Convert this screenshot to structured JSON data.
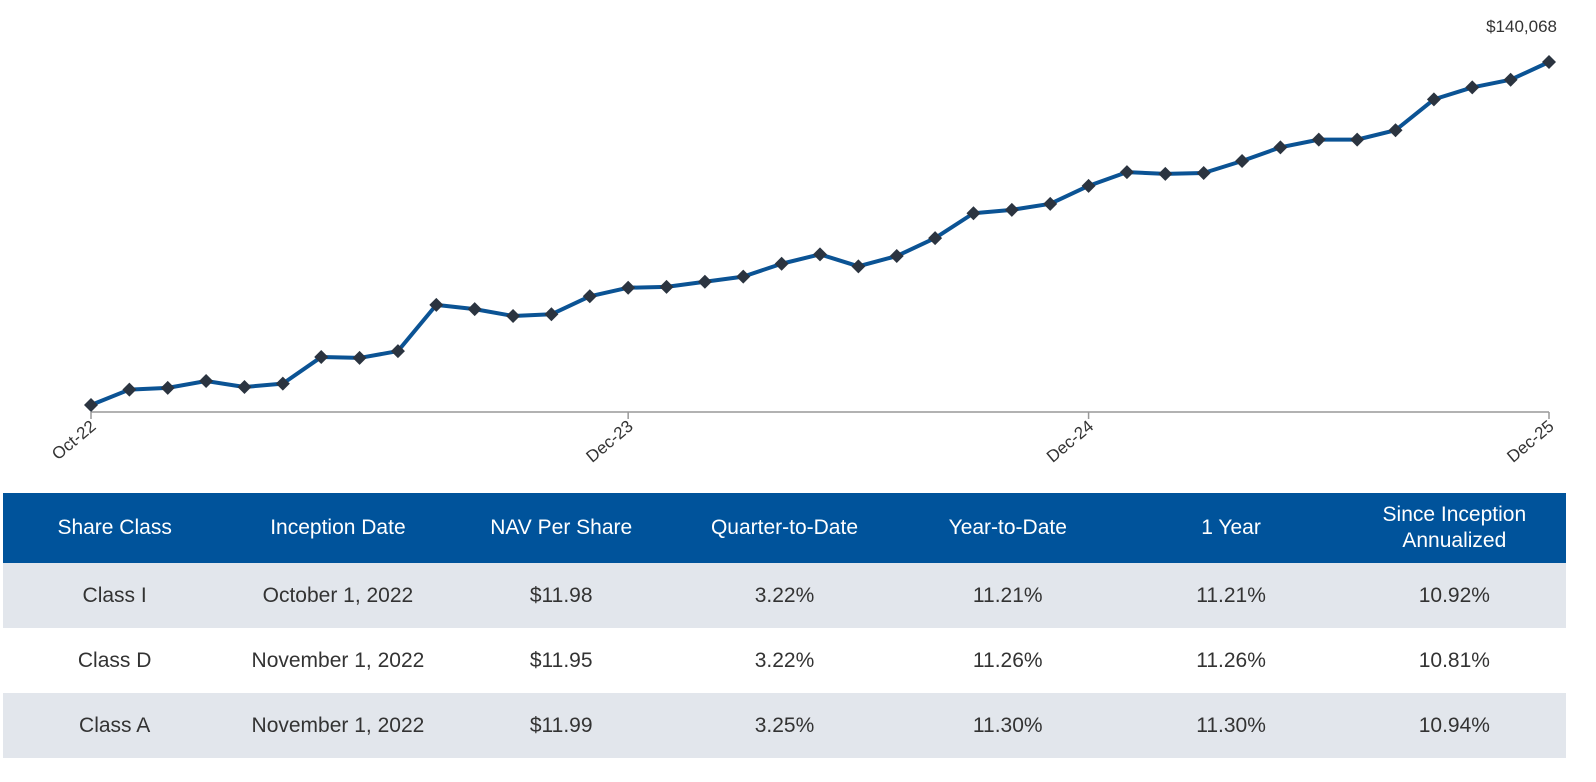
{
  "chart_data": {
    "type": "line",
    "categories": [
      "Oct-22",
      null,
      null,
      null,
      null,
      null,
      null,
      null,
      null,
      null,
      null,
      null,
      null,
      null,
      "Dec-23",
      null,
      null,
      null,
      null,
      null,
      null,
      null,
      null,
      null,
      null,
      null,
      "Dec-24",
      null,
      null,
      null,
      null,
      null,
      null,
      null,
      null,
      null,
      null,
      null,
      "Dec-25"
    ],
    "values": [
      100000,
      101800,
      102000,
      102800,
      102100,
      102500,
      105600,
      105500,
      106300,
      111700,
      111200,
      110400,
      110600,
      112700,
      113700,
      113800,
      114400,
      115000,
      116500,
      117600,
      116200,
      117400,
      119500,
      122400,
      122800,
      123500,
      125600,
      127200,
      127000,
      127100,
      128500,
      130100,
      131000,
      131000,
      132100,
      135700,
      137100,
      138000,
      140068
    ],
    "value_labels": [
      null,
      null,
      null,
      null,
      null,
      null,
      null,
      null,
      null,
      null,
      null,
      null,
      null,
      null,
      null,
      null,
      null,
      null,
      null,
      null,
      null,
      null,
      null,
      null,
      null,
      null,
      null,
      null,
      null,
      null,
      null,
      null,
      null,
      null,
      null,
      null,
      null,
      null,
      "$140,068"
    ],
    "color": "#0b5394",
    "marker_color": "#2b3440"
  },
  "table": {
    "columns": [
      "Share Class",
      "Inception Date",
      "NAV Per Share",
      "Quarter-to-Date",
      "Year-to-Date",
      "1 Year",
      "Since Inception Annualized"
    ],
    "rows": [
      [
        "Class I",
        "October 1, 2022",
        "$11.98",
        "3.22%",
        "11.21%",
        "11.21%",
        "10.92%"
      ],
      [
        "Class D",
        "November 1, 2022",
        "$11.95",
        "3.22%",
        "11.26%",
        "11.26%",
        "10.81%"
      ],
      [
        "Class A",
        "November 1, 2022",
        "$11.99",
        "3.25%",
        "11.30%",
        "11.30%",
        "10.94%"
      ]
    ]
  }
}
